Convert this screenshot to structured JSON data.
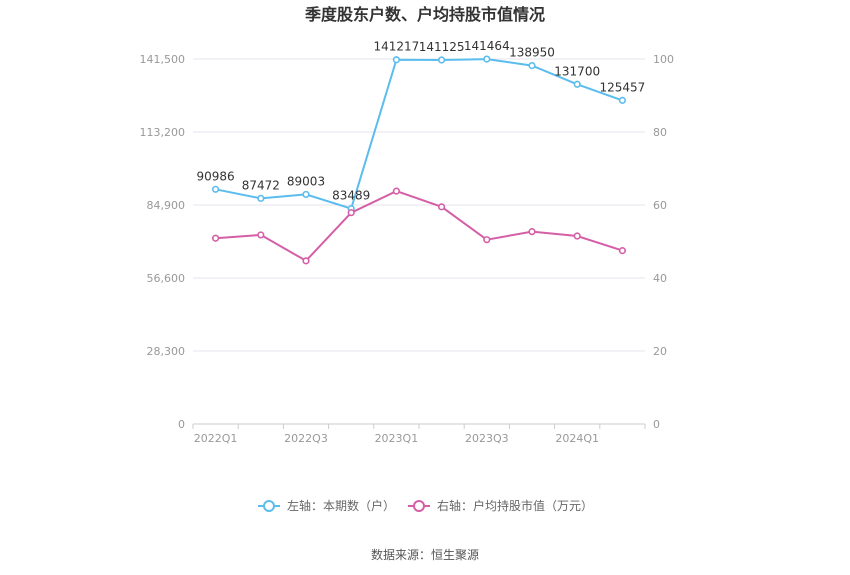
{
  "chart_data": {
    "type": "line",
    "title": "季度股东户数、户均持股市值情况",
    "categories": [
      "2022Q1",
      "2022Q2",
      "2022Q3",
      "2022Q4",
      "2023Q1",
      "2023Q2",
      "2023Q3",
      "2023Q4",
      "2024Q1",
      "2024Q2"
    ],
    "x_tick_labels": [
      "2022Q1",
      "2022Q3",
      "2023Q1",
      "2023Q3",
      "2024Q1"
    ],
    "left_axis": {
      "ylim": [
        0,
        141500
      ],
      "ticks": [
        0,
        28300,
        56600,
        84900,
        113200,
        141500
      ],
      "tick_labels": [
        "0",
        "28,300",
        "56,600",
        "84,900",
        "113,200",
        "141,500"
      ]
    },
    "right_axis": {
      "ylim": [
        0,
        100
      ],
      "ticks": [
        0,
        20,
        40,
        60,
        80,
        100
      ],
      "tick_labels": [
        "0",
        "20",
        "40",
        "60",
        "80",
        "100"
      ]
    },
    "series": [
      {
        "name": "左轴：本期数（户）",
        "axis": "left",
        "color": "#5bbcee",
        "values": [
          90986,
          87472,
          89003,
          83489,
          141217,
          141125,
          141464,
          138950,
          131700,
          125457
        ],
        "data_labels": [
          "90986",
          "87472",
          "89003",
          "83489",
          "141217",
          "141125",
          "141464",
          "138950",
          "131700",
          "125457"
        ]
      },
      {
        "name": "右轴：户均持股市值（万元）",
        "axis": "right",
        "color": "#d45fa6",
        "values": [
          50.9,
          51.8,
          44.7,
          57.9,
          63.8,
          59.5,
          50.5,
          52.7,
          51.5,
          47.5
        ]
      }
    ],
    "grid": true,
    "legend_position": "bottom-center",
    "source": "数据来源：恒生聚源"
  }
}
